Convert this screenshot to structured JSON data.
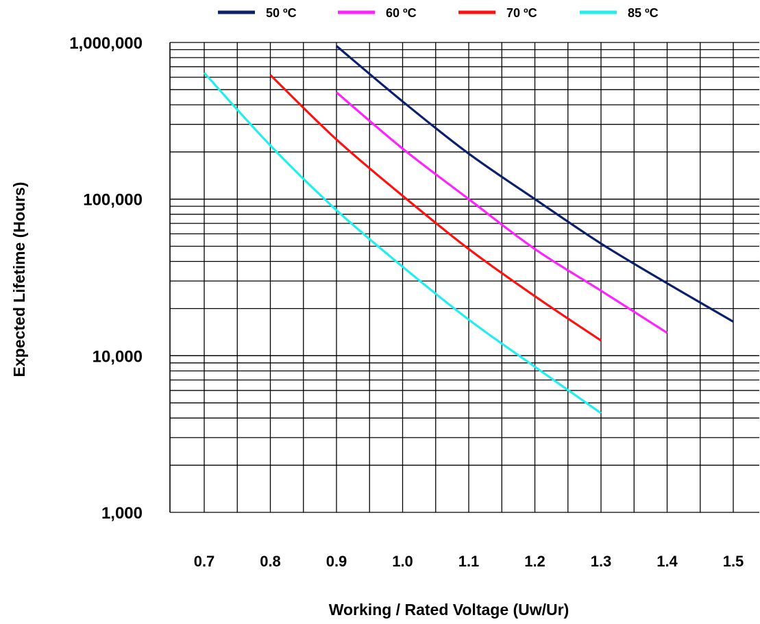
{
  "chart_data": {
    "type": "line",
    "title": "",
    "xlabel": "Working / Rated Voltage (Uw/Ur)",
    "ylabel": "Expected Lifetime (Hours)",
    "x_scale": "linear",
    "y_scale": "log",
    "xlim": [
      0.65,
      1.52
    ],
    "ylim": [
      1000,
      1000000
    ],
    "x_ticks": [
      "0.7",
      "0.8",
      "0.9",
      "1.0",
      "1.1",
      "1.2",
      "1.3",
      "1.4",
      "1.5"
    ],
    "y_ticks": [
      "1,000",
      "10,000",
      "100,000",
      "1,000,000"
    ],
    "grid": true,
    "legend_position": "top",
    "series": [
      {
        "name": "50 ºC",
        "color": "#0b1f6b",
        "x": [
          0.9,
          1.0,
          1.1,
          1.2,
          1.3,
          1.4,
          1.5
        ],
        "y": [
          950000,
          420000,
          195000,
          100000,
          52000,
          29000,
          16500
        ]
      },
      {
        "name": "60 ºC",
        "color": "#ff22ff",
        "x": [
          0.9,
          1.0,
          1.1,
          1.2,
          1.3,
          1.4
        ],
        "y": [
          480000,
          210000,
          100000,
          48000,
          26000,
          14000
        ]
      },
      {
        "name": "70 ºC",
        "color": "#ff1111",
        "x": [
          0.8,
          0.9,
          1.0,
          1.1,
          1.2,
          1.3
        ],
        "y": [
          620000,
          240000,
          105000,
          48000,
          24000,
          12500
        ]
      },
      {
        "name": "85 ºC",
        "color": "#22eeee",
        "x": [
          0.7,
          0.8,
          0.9,
          1.0,
          1.1,
          1.2,
          1.3
        ],
        "y": [
          640000,
          220000,
          85000,
          37000,
          17000,
          8500,
          4300
        ]
      }
    ]
  }
}
